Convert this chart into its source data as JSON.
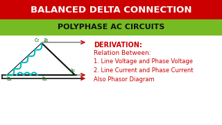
{
  "title1": "BALANCED DELTA CONNECTION",
  "title2": "POLYPHASE AC CIRCUITS",
  "title1_bg": "#cc0000",
  "title2_bg": "#77bb22",
  "title1_color": "#ffffff",
  "title2_color": "#111111",
  "body_bg": "#ffffff",
  "text_color": "#cc0000",
  "derivation_title": "DERIVATION:",
  "line1": "Relation Between:",
  "line2": "1. Line Voltage and Phase Voltage",
  "line3": "2. Line Current and Phase Current",
  "line4": "Also Phasor Diagram",
  "label_a1": "a₁",
  "label_b1": "b₁",
  "label_b2": "b₂",
  "label_a2": "a₂",
  "label_c2": "c₂",
  "inductor_color": "#00bbbb",
  "wire_color": "#888888",
  "arrow_color": "#cc0000",
  "line_color": "#111111"
}
